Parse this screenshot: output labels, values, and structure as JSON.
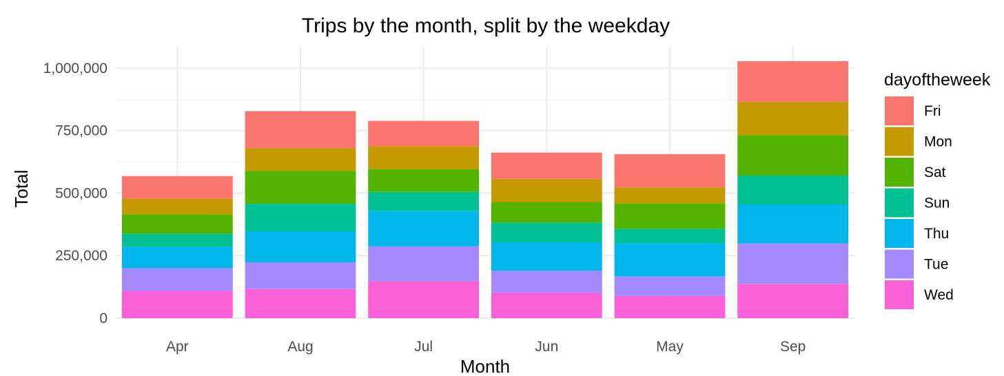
{
  "chart_data": {
    "type": "bar",
    "stacked": true,
    "title": "Trips by the month, split by the weekday",
    "xlabel": "Month",
    "ylabel": "Total",
    "categories": [
      "Apr",
      "Aug",
      "Jul",
      "Jun",
      "May",
      "Sep"
    ],
    "ylim": [
      0,
      1085000
    ],
    "yticks": [
      0,
      250000,
      500000,
      750000,
      1000000
    ],
    "ytick_labels": [
      "0",
      "250,000",
      "500,000",
      "750,000",
      "1,000,000"
    ],
    "grid": true,
    "legend": {
      "title": "dayoftheweek",
      "placement": "right"
    },
    "stack_order_bottom_to_top": [
      "Wed",
      "Tue",
      "Thu",
      "Sun",
      "Sat",
      "Mon",
      "Fri"
    ],
    "series": [
      {
        "name": "Fri",
        "color": "#F8766D",
        "values": [
          90000,
          148000,
          102000,
          105000,
          133000,
          163000
        ]
      },
      {
        "name": "Mon",
        "color": "#C49A00",
        "values": [
          63000,
          91000,
          91000,
          93000,
          64000,
          134000
        ]
      },
      {
        "name": "Sat",
        "color": "#53B400",
        "values": [
          77000,
          132000,
          91000,
          82000,
          102000,
          161000
        ]
      },
      {
        "name": "Sun",
        "color": "#00C094",
        "values": [
          52000,
          110000,
          76000,
          79000,
          57000,
          117000
        ]
      },
      {
        "name": "Thu",
        "color": "#00B6EB",
        "values": [
          86000,
          124000,
          142000,
          113000,
          133000,
          154000
        ]
      },
      {
        "name": "Tue",
        "color": "#A58AFF",
        "values": [
          91000,
          107000,
          139000,
          88000,
          78000,
          162000
        ]
      },
      {
        "name": "Wed",
        "color": "#FB61D7",
        "values": [
          109000,
          116000,
          148000,
          102000,
          89000,
          137000
        ]
      }
    ]
  }
}
